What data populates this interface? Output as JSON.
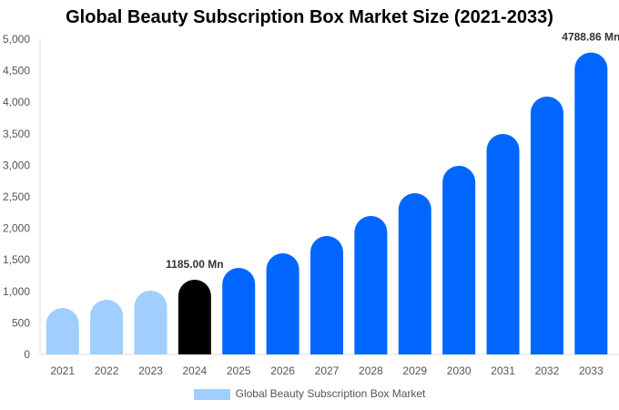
{
  "chart_data": {
    "type": "bar",
    "title": "Global Beauty Subscription Box Market Size (2021-2033)",
    "categories": [
      "2021",
      "2022",
      "2023",
      "2024",
      "2025",
      "2026",
      "2027",
      "2028",
      "2029",
      "2030",
      "2031",
      "2032",
      "2033"
    ],
    "series": [
      {
        "name": "Global Beauty Subscription Box Market",
        "values": [
          737,
          867,
          1012,
          1185.0,
          1373,
          1604,
          1879,
          2197,
          2558,
          2991,
          3497,
          4090,
          4788.86
        ]
      }
    ],
    "data_labels": {
      "3": "1185.00 Mn",
      "12": "4788.86 Mn"
    },
    "yticks": [
      "0",
      "500",
      "1,000",
      "1,500",
      "2,000",
      "2,500",
      "3,000",
      "3,500",
      "4,000",
      "4,500",
      "5,000"
    ],
    "ylim": [
      0,
      5000
    ],
    "xlabel": "",
    "ylabel": "",
    "grid": false,
    "legend": "bottom",
    "colors": {
      "historic": "#a0cfff",
      "current": "#000000",
      "forecast": "#0066ff"
    }
  }
}
